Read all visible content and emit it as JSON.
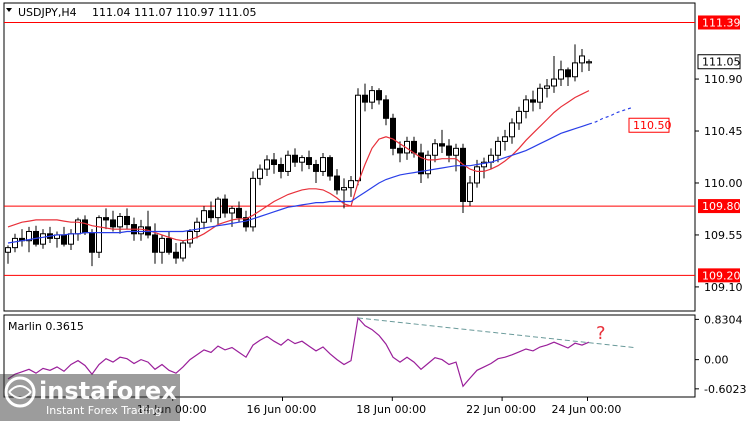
{
  "header": {
    "symbol": "USDJPY,H4",
    "ohlc": "111.04 111.07 110.97 111.05"
  },
  "oscillator": {
    "name": "Marlin",
    "value": "0.3615",
    "label": "Marlin 0.3615",
    "annotation": "?"
  },
  "watermark": {
    "brand": "instaforex",
    "tagline": "Instant Forex Trading"
  },
  "colors": {
    "price_levels": "#ff0000",
    "ma_red": "#e8303a",
    "ma_blue": "#2a3fe8",
    "oscillator_line": "#9a1f9a",
    "trendline": "#6a9a9a",
    "candle_bull": "#ffffff",
    "candle_bear": "#000000"
  },
  "chart_data": {
    "type": "candlestick",
    "price_axis_ticks": [
      "110.90",
      "110.45",
      "110.00",
      "109.55",
      "109.10"
    ],
    "oscillator_axis_ticks": [
      "0.8304",
      "0.00",
      "-0.6023"
    ],
    "time_axis_labels": [
      "14 Jun 00:00",
      "16 Jun 00:00",
      "18 Jun 00:00",
      "22 Jun 00:00",
      "24 Jun 00:00"
    ],
    "horizontal_levels": [
      {
        "value": 111.39,
        "label": "111.39"
      },
      {
        "value": 109.8,
        "label": "109.80"
      },
      {
        "value": 109.2,
        "label": "109.20"
      }
    ],
    "current_price": {
      "value": 111.05,
      "label": "111.05"
    },
    "ma_projection": {
      "value": 110.5,
      "label": "110.50"
    },
    "ylim": [
      108.9,
      111.55
    ],
    "osc_ylim": [
      -0.75,
      0.9
    ],
    "candles": [
      [
        109.4,
        109.46,
        109.3,
        109.44
      ],
      [
        109.44,
        109.56,
        109.4,
        109.52
      ],
      [
        109.52,
        109.6,
        109.45,
        109.5
      ],
      [
        109.5,
        109.62,
        109.4,
        109.58
      ],
      [
        109.58,
        109.63,
        109.45,
        109.47
      ],
      [
        109.47,
        109.6,
        109.43,
        109.56
      ],
      [
        109.56,
        109.62,
        109.48,
        109.52
      ],
      [
        109.52,
        109.58,
        109.44,
        109.55
      ],
      [
        109.55,
        109.62,
        109.45,
        109.47
      ],
      [
        109.47,
        109.6,
        109.42,
        109.56
      ],
      [
        109.56,
        109.7,
        109.5,
        109.68
      ],
      [
        109.68,
        109.72,
        109.55,
        109.57
      ],
      [
        109.57,
        109.6,
        109.28,
        109.4
      ],
      [
        109.4,
        109.72,
        109.35,
        109.7
      ],
      [
        109.7,
        109.78,
        109.6,
        109.68
      ],
      [
        109.68,
        109.76,
        109.58,
        109.62
      ],
      [
        109.62,
        109.74,
        109.56,
        109.71
      ],
      [
        109.71,
        109.78,
        109.6,
        109.64
      ],
      [
        109.64,
        109.7,
        109.5,
        109.56
      ],
      [
        109.56,
        109.68,
        109.5,
        109.62
      ],
      [
        109.62,
        109.76,
        109.52,
        109.55
      ],
      [
        109.55,
        109.65,
        109.3,
        109.4
      ],
      [
        109.4,
        109.55,
        109.3,
        109.52
      ],
      [
        109.52,
        109.58,
        109.38,
        109.4
      ],
      [
        109.4,
        109.48,
        109.3,
        109.35
      ],
      [
        109.35,
        109.5,
        109.32,
        109.48
      ],
      [
        109.48,
        109.6,
        109.44,
        109.58
      ],
      [
        109.58,
        109.7,
        109.52,
        109.66
      ],
      [
        109.66,
        109.8,
        109.6,
        109.76
      ],
      [
        109.76,
        109.84,
        109.66,
        109.7
      ],
      [
        109.7,
        109.88,
        109.64,
        109.86
      ],
      [
        109.86,
        109.9,
        109.7,
        109.74
      ],
      [
        109.74,
        109.8,
        109.62,
        109.78
      ],
      [
        109.78,
        109.84,
        109.66,
        109.7
      ],
      [
        109.7,
        109.76,
        109.58,
        109.62
      ],
      [
        109.62,
        110.1,
        109.58,
        110.04
      ],
      [
        110.04,
        110.16,
        109.98,
        110.12
      ],
      [
        110.12,
        110.24,
        110.06,
        110.2
      ],
      [
        110.2,
        110.26,
        110.08,
        110.16
      ],
      [
        110.16,
        110.22,
        110.04,
        110.1
      ],
      [
        110.1,
        110.28,
        110.06,
        110.24
      ],
      [
        110.24,
        110.3,
        110.14,
        110.18
      ],
      [
        110.18,
        110.24,
        110.1,
        110.22
      ],
      [
        110.22,
        110.28,
        110.12,
        110.16
      ],
      [
        110.16,
        110.2,
        110.0,
        110.1
      ],
      [
        110.1,
        110.26,
        110.06,
        110.22
      ],
      [
        110.22,
        110.24,
        110.02,
        110.06
      ],
      [
        110.06,
        110.12,
        109.9,
        109.94
      ],
      [
        109.94,
        110.04,
        109.78,
        109.96
      ],
      [
        109.96,
        110.06,
        109.88,
        110.02
      ],
      [
        110.02,
        110.82,
        109.98,
        110.76
      ],
      [
        110.76,
        110.86,
        110.62,
        110.7
      ],
      [
        110.7,
        110.84,
        110.64,
        110.8
      ],
      [
        110.8,
        110.82,
        110.68,
        110.72
      ],
      [
        110.72,
        110.76,
        110.5,
        110.56
      ],
      [
        110.56,
        110.6,
        110.24,
        110.3
      ],
      [
        110.3,
        110.36,
        110.18,
        110.26
      ],
      [
        110.26,
        110.4,
        110.2,
        110.36
      ],
      [
        110.36,
        110.4,
        110.22,
        110.26
      ],
      [
        110.26,
        110.34,
        110.0,
        110.08
      ],
      [
        110.08,
        110.28,
        110.04,
        110.24
      ],
      [
        110.24,
        110.38,
        110.18,
        110.34
      ],
      [
        110.34,
        110.46,
        110.26,
        110.32
      ],
      [
        110.32,
        110.38,
        110.18,
        110.24
      ],
      [
        110.24,
        110.34,
        110.1,
        110.3
      ],
      [
        110.3,
        110.34,
        109.74,
        109.84
      ],
      [
        109.84,
        110.06,
        109.8,
        110.0
      ],
      [
        110.0,
        110.2,
        109.96,
        110.14
      ],
      [
        110.14,
        110.22,
        110.04,
        110.18
      ],
      [
        110.18,
        110.3,
        110.12,
        110.24
      ],
      [
        110.24,
        110.4,
        110.18,
        110.36
      ],
      [
        110.36,
        110.46,
        110.28,
        110.4
      ],
      [
        110.4,
        110.56,
        110.34,
        110.52
      ],
      [
        110.52,
        110.66,
        110.46,
        110.62
      ],
      [
        110.62,
        110.76,
        110.56,
        110.72
      ],
      [
        110.72,
        110.8,
        110.62,
        110.7
      ],
      [
        110.7,
        110.86,
        110.64,
        110.82
      ],
      [
        110.82,
        110.9,
        110.74,
        110.84
      ],
      [
        110.84,
        111.1,
        110.78,
        110.9
      ],
      [
        110.9,
        111.06,
        110.84,
        110.98
      ],
      [
        110.98,
        111.0,
        110.84,
        110.92
      ],
      [
        110.92,
        111.2,
        110.88,
        111.04
      ],
      [
        111.04,
        111.16,
        110.96,
        111.1
      ],
      [
        111.04,
        111.07,
        110.97,
        111.05
      ]
    ],
    "ma_red": [
      109.62,
      109.64,
      109.66,
      109.67,
      109.68,
      109.68,
      109.68,
      109.68,
      109.67,
      109.66,
      109.66,
      109.65,
      109.63,
      109.62,
      109.61,
      109.6,
      109.6,
      109.6,
      109.6,
      109.6,
      109.59,
      109.57,
      109.55,
      109.53,
      109.51,
      109.5,
      109.51,
      109.53,
      109.56,
      109.6,
      109.64,
      109.66,
      109.68,
      109.69,
      109.69,
      109.72,
      109.76,
      109.8,
      109.84,
      109.87,
      109.9,
      109.92,
      109.94,
      109.95,
      109.95,
      109.94,
      109.91,
      109.87,
      109.82,
      109.8,
      110.0,
      110.16,
      110.3,
      110.38,
      110.4,
      110.38,
      110.34,
      110.3,
      110.26,
      110.22,
      110.2,
      110.2,
      110.21,
      110.21,
      110.21,
      110.16,
      110.12,
      110.1,
      110.1,
      110.12,
      110.15,
      110.19,
      110.24,
      110.3,
      110.37,
      110.43,
      110.49,
      110.55,
      110.61,
      110.66,
      110.7,
      110.74,
      110.77,
      110.8
    ],
    "ma_blue": [
      109.48,
      109.49,
      109.5,
      109.51,
      109.52,
      109.53,
      109.54,
      109.55,
      109.55,
      109.56,
      109.56,
      109.57,
      109.57,
      109.57,
      109.57,
      109.57,
      109.57,
      109.58,
      109.58,
      109.58,
      109.58,
      109.58,
      109.58,
      109.58,
      109.58,
      109.58,
      109.59,
      109.6,
      109.61,
      109.62,
      109.63,
      109.64,
      109.65,
      109.66,
      109.67,
      109.69,
      109.71,
      109.73,
      109.75,
      109.77,
      109.79,
      109.8,
      109.81,
      109.82,
      109.83,
      109.83,
      109.84,
      109.84,
      109.84,
      109.84,
      109.88,
      109.92,
      109.96,
      110.0,
      110.03,
      110.05,
      110.07,
      110.08,
      110.09,
      110.1,
      110.11,
      110.12,
      110.13,
      110.14,
      110.15,
      110.15,
      110.15,
      110.16,
      110.17,
      110.18,
      110.2,
      110.22,
      110.24,
      110.26,
      110.28,
      110.31,
      110.34,
      110.37,
      110.4,
      110.43,
      110.45,
      110.47,
      110.49,
      110.51
    ],
    "ma_blue_projection": [
      110.51,
      110.53,
      110.56,
      110.58,
      110.61,
      110.63,
      110.65
    ],
    "oscillator_series": [
      -0.4,
      -0.3,
      -0.25,
      -0.2,
      -0.28,
      -0.18,
      -0.22,
      -0.15,
      -0.24,
      -0.1,
      -0.02,
      -0.12,
      -0.3,
      -0.1,
      0.02,
      -0.05,
      0.05,
      0.02,
      -0.08,
      0.0,
      -0.05,
      -0.2,
      -0.1,
      -0.22,
      -0.28,
      -0.15,
      0.0,
      0.1,
      0.2,
      0.15,
      0.28,
      0.2,
      0.25,
      0.15,
      0.05,
      0.3,
      0.4,
      0.48,
      0.38,
      0.3,
      0.42,
      0.33,
      0.38,
      0.28,
      0.18,
      0.26,
      0.12,
      0.0,
      -0.1,
      -0.02,
      0.86,
      0.7,
      0.62,
      0.5,
      0.32,
      0.05,
      -0.05,
      0.05,
      -0.05,
      -0.2,
      -0.08,
      0.04,
      0.0,
      -0.1,
      -0.05,
      -0.55,
      -0.38,
      -0.22,
      -0.15,
      -0.08,
      0.02,
      0.05,
      0.1,
      0.16,
      0.22,
      0.18,
      0.26,
      0.3,
      0.36,
      0.3,
      0.24,
      0.34,
      0.3,
      0.36
    ],
    "oscillator_trendline": [
      0.86,
      0.25
    ]
  }
}
